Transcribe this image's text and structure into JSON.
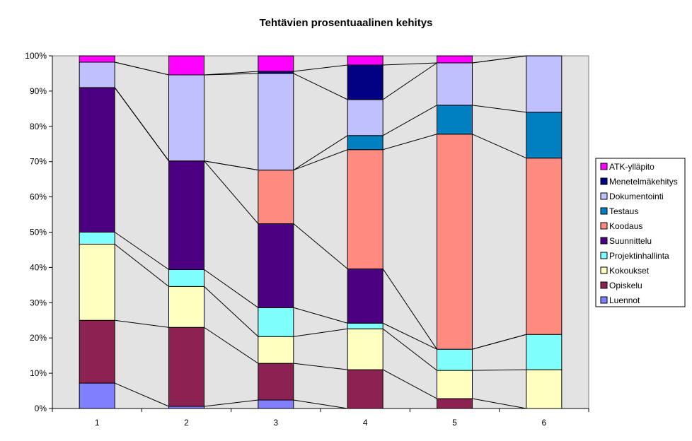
{
  "chart_data": {
    "type": "bar",
    "stacked": "percent",
    "title": "Tehtävien prosentuaalinen kehitys",
    "xlabel": "",
    "ylabel": "",
    "categories": [
      "1",
      "2",
      "3",
      "4",
      "5",
      "6"
    ],
    "ylim": [
      0,
      100
    ],
    "yticks": [
      "0%",
      "10%",
      "20%",
      "30%",
      "40%",
      "50%",
      "60%",
      "70%",
      "80%",
      "90%",
      "100%"
    ],
    "grid": false,
    "legend_position": "right",
    "plot_background": "#c0c0c0",
    "series_lines": true,
    "series": [
      {
        "name": "Luennot",
        "color": "#8080ff",
        "values": [
          7.2,
          0.6,
          2.4,
          0,
          0,
          0
        ]
      },
      {
        "name": "Opiskelu",
        "color": "#8b2252",
        "values": [
          17.8,
          22.4,
          10.4,
          11,
          2.8,
          0
        ]
      },
      {
        "name": "Kokoukset",
        "color": "#ffffc0",
        "values": [
          21.6,
          11.6,
          7.6,
          11.6,
          8,
          11
        ]
      },
      {
        "name": "Projektinhallinta",
        "color": "#80ffff",
        "values": [
          3.4,
          4.8,
          8.2,
          1.6,
          6,
          10
        ]
      },
      {
        "name": "Suunnittelu",
        "color": "#4b0082",
        "values": [
          41,
          30.8,
          23.8,
          15.4,
          0,
          0
        ]
      },
      {
        "name": "Koodaus",
        "color": "#ff8a80",
        "values": [
          0,
          0,
          15.2,
          33.8,
          61,
          50
        ]
      },
      {
        "name": "Testaus",
        "color": "#0080c0",
        "values": [
          0,
          0,
          0,
          4,
          8.2,
          13
        ]
      },
      {
        "name": "Dokumentointi",
        "color": "#c0c0ff",
        "values": [
          7.2,
          24.4,
          27.4,
          10.2,
          12,
          16
        ]
      },
      {
        "name": "Menetelmäkehitys",
        "color": "#000080",
        "values": [
          0,
          0,
          0.6,
          9.8,
          0,
          0
        ]
      },
      {
        "name": "ATK-ylläpito",
        "color": "#ff00ff",
        "values": [
          1.8,
          5.4,
          4.4,
          2.6,
          2,
          0
        ]
      }
    ]
  }
}
